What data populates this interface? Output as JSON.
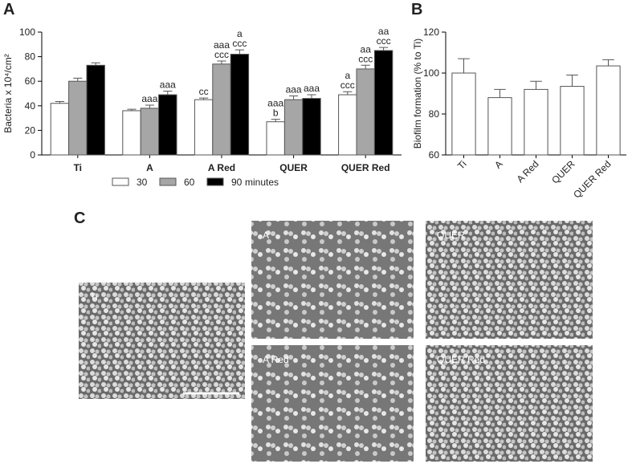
{
  "chart_data": [
    {
      "type": "bar",
      "panel_label": "A",
      "y_label": "Bacteria x 10⁴/cm²",
      "categories": [
        "Ti",
        "A",
        "A Red",
        "QUER",
        "QUER Red"
      ],
      "series": [
        {
          "name": "30",
          "color": "#ffffff",
          "values": [
            42,
            36,
            45,
            27,
            49
          ],
          "errors": [
            1.5,
            1.2,
            1.3,
            2,
            2.5
          ],
          "annotations": [
            [],
            [],
            [
              "cc"
            ],
            [
              "aaa",
              "b"
            ],
            [
              "a",
              "ccc"
            ]
          ]
        },
        {
          "name": "60",
          "color": "#a6a6a6",
          "values": [
            60,
            38,
            74,
            45,
            70
          ],
          "errors": [
            2.5,
            2.5,
            2.5,
            3,
            3
          ],
          "annotations": [
            [],
            [
              "aaa"
            ],
            [
              "aaa",
              "ccc"
            ],
            [
              "aaa"
            ],
            [
              "aa",
              "ccc"
            ]
          ]
        },
        {
          "name": "90",
          "color": "#000000",
          "values": [
            73,
            49,
            82,
            46,
            85
          ],
          "errors": [
            2,
            3,
            3.5,
            3,
            2.5
          ],
          "annotations": [
            [],
            [
              "aaa"
            ],
            [
              "a",
              "ccc"
            ],
            [
              "aaa"
            ],
            [
              "aa",
              "ccc"
            ]
          ]
        }
      ],
      "legend_title": "minutes",
      "ylim": [
        0,
        100
      ],
      "yticks": [
        0,
        20,
        40,
        60,
        80,
        100
      ]
    },
    {
      "type": "bar",
      "panel_label": "B",
      "y_label": "Biofilm formation (% to Ti)",
      "categories": [
        "Ti",
        "A",
        "A Red",
        "QUER",
        "QUER Red"
      ],
      "values": [
        100,
        88,
        92,
        93.5,
        103.5
      ],
      "errors": [
        7,
        4,
        4,
        5.5,
        3
      ],
      "color": "#ffffff",
      "rotate_x_labels": true,
      "ylim": [
        60,
        120
      ],
      "yticks": [
        60,
        80,
        100,
        120
      ]
    }
  ],
  "panel_c": {
    "label": "C",
    "images": [
      {
        "label": "Ti"
      },
      {
        "label": "A"
      },
      {
        "label": "QUER"
      },
      {
        "label": "A Red"
      },
      {
        "label": "QUER Red"
      }
    ]
  }
}
